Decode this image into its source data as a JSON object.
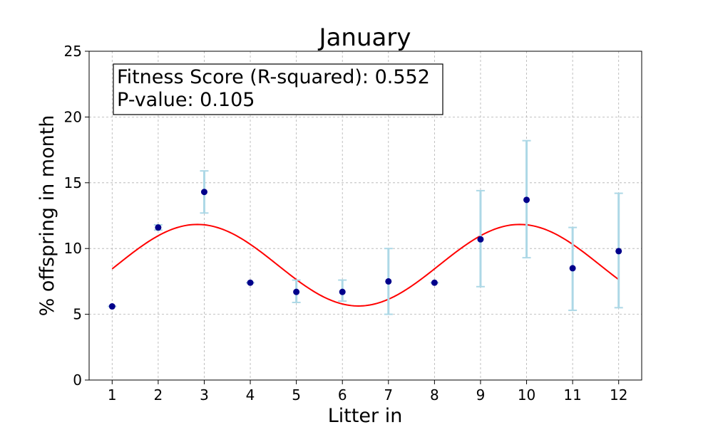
{
  "chart_data": {
    "type": "scatter",
    "title": "January",
    "xlabel": "Litter in",
    "ylabel": "% offspring in month",
    "xlim": [
      0.5,
      12.5
    ],
    "ylim": [
      0,
      25
    ],
    "xticks": [
      1,
      2,
      3,
      4,
      5,
      6,
      7,
      8,
      9,
      10,
      11,
      12
    ],
    "yticks": [
      0,
      5,
      10,
      15,
      20,
      25
    ],
    "grid": true,
    "points": [
      {
        "x": 1,
        "y": 5.6,
        "err_low": 5.6,
        "err_high": 5.6
      },
      {
        "x": 2,
        "y": 11.6,
        "err_low": 11.4,
        "err_high": 11.8
      },
      {
        "x": 3,
        "y": 14.3,
        "err_low": 12.7,
        "err_high": 15.9
      },
      {
        "x": 4,
        "y": 7.4,
        "err_low": 7.4,
        "err_high": 7.4
      },
      {
        "x": 5,
        "y": 6.7,
        "err_low": 5.9,
        "err_high": 7.6
      },
      {
        "x": 6,
        "y": 6.7,
        "err_low": 6.0,
        "err_high": 7.6
      },
      {
        "x": 7,
        "y": 7.5,
        "err_low": 5.0,
        "err_high": 10.0
      },
      {
        "x": 8,
        "y": 7.4,
        "err_low": 7.4,
        "err_high": 7.4
      },
      {
        "x": 9,
        "y": 10.7,
        "err_low": 7.1,
        "err_high": 14.4
      },
      {
        "x": 10,
        "y": 13.7,
        "err_low": 9.3,
        "err_high": 18.2
      },
      {
        "x": 11,
        "y": 8.5,
        "err_low": 5.3,
        "err_high": 11.6
      },
      {
        "x": 12,
        "y": 9.8,
        "err_low": 5.5,
        "err_high": 14.2
      }
    ],
    "fit_curve": {
      "form": "sine",
      "mean": 8.73,
      "amplitude": 3.1,
      "period": 7.0,
      "peak_x": 2.85,
      "x_range": [
        1,
        12
      ]
    },
    "annotation": {
      "line1": "Fitness Score (R-squared): 0.552",
      "line2": "P-value: 0.105"
    },
    "colors": {
      "points": "#00008b",
      "errorbars": "#add8e6",
      "fit": "#ff0000",
      "grid": "#b0b0b0"
    }
  }
}
